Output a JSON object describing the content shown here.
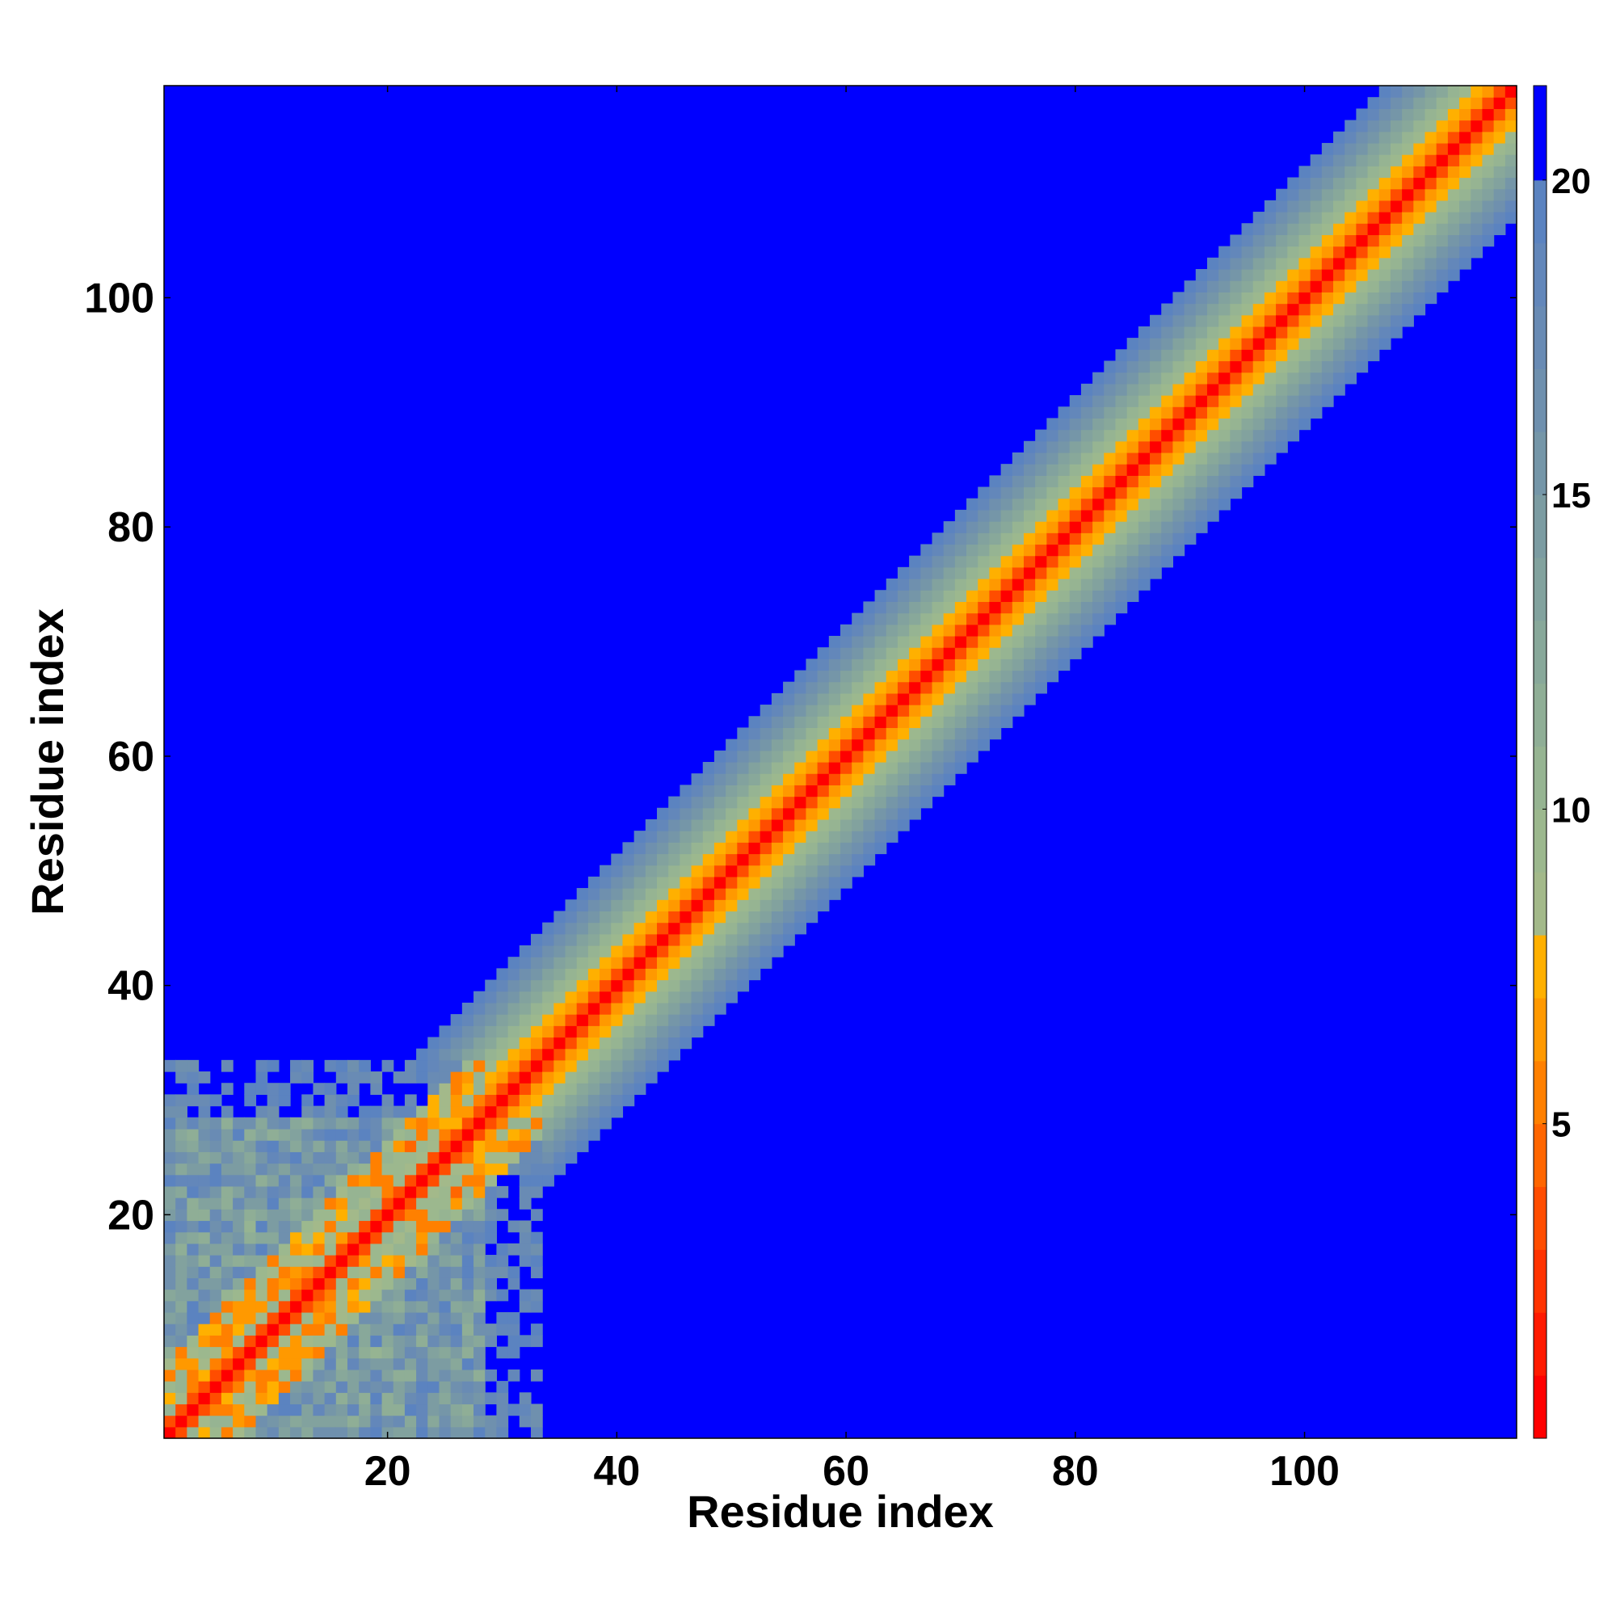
{
  "chart_data": {
    "type": "heatmap",
    "title": "",
    "xlabel": "Residue index",
    "ylabel": "Residue index",
    "n_residues": 118,
    "xlim": [
      0.5,
      118.5
    ],
    "ylim": [
      0.5,
      118.5
    ],
    "x_ticks": [
      20,
      40,
      60,
      80,
      100
    ],
    "y_ticks": [
      20,
      40,
      60,
      80,
      100
    ],
    "colorbar": {
      "min": 0,
      "max": 21.5,
      "ticks": [
        5,
        10,
        15,
        20
      ],
      "levels": [
        {
          "max": 1.0,
          "color": "#ff0000"
        },
        {
          "max": 2.0,
          "color": "#ff1a00"
        },
        {
          "max": 3.0,
          "color": "#ff3300"
        },
        {
          "max": 4.0,
          "color": "#ff4d00"
        },
        {
          "max": 5.0,
          "color": "#ff6600"
        },
        {
          "max": 6.0,
          "color": "#ff8000"
        },
        {
          "max": 7.0,
          "color": "#ff9900"
        },
        {
          "max": 8.0,
          "color": "#ffb000"
        },
        {
          "max": 9.0,
          "color": "#a3b98a"
        },
        {
          "max": 10.0,
          "color": "#9cb88e"
        },
        {
          "max": 11.0,
          "color": "#96b492"
        },
        {
          "max": 12.0,
          "color": "#8fae96"
        },
        {
          "max": 13.0,
          "color": "#88a89a"
        },
        {
          "max": 14.0,
          "color": "#82a29e"
        },
        {
          "max": 15.0,
          "color": "#7c9ca2"
        },
        {
          "max": 16.0,
          "color": "#7596a8"
        },
        {
          "max": 17.0,
          "color": "#6f90ae"
        },
        {
          "max": 18.0,
          "color": "#698bb4"
        },
        {
          "max": 19.0,
          "color": "#6387ba"
        },
        {
          "max": 20.0,
          "color": "#5b83c0"
        },
        {
          "max": 21.5,
          "color": "#0000ff"
        }
      ]
    },
    "description_of_values": "Pairwise C-alpha distance map (Angstrom), 118x118 symmetric matrix; 0 on diagonal, ~3.8 for i±1, rising to >20 (blue) beyond ~|i-j|=12; N-terminal residues 1-28 form a disordered mixed-distance cluster."
  },
  "colors": {
    "background": "#0000ff",
    "diagonal": "#ff0000"
  }
}
